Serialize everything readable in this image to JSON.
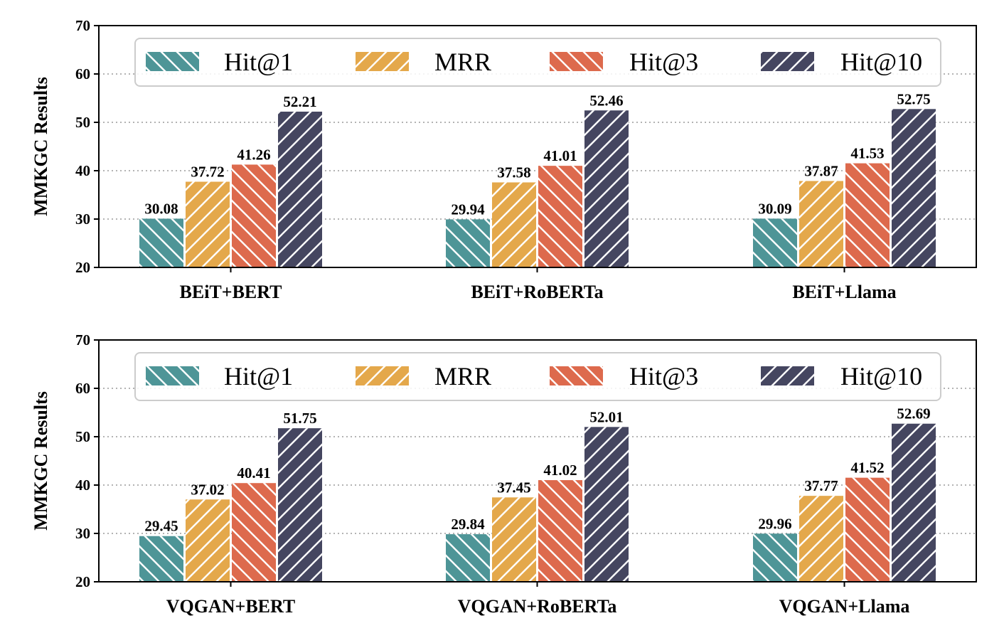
{
  "chart_data": [
    {
      "type": "bar",
      "ylabel": "MMKGC Results",
      "xlabel": "",
      "ylim": [
        20,
        70
      ],
      "yticks": [
        20,
        30,
        40,
        50,
        60,
        70
      ],
      "grid": "y-dotted",
      "legend_position": "top",
      "categories": [
        "BEiT+BERT",
        "BEiT+RoBERTa",
        "BEiT+Llama"
      ],
      "series": [
        {
          "name": "Hit@1",
          "color": "#4e9597",
          "values": [
            30.08,
            29.94,
            30.09
          ]
        },
        {
          "name": "MRR",
          "color": "#e4a84b",
          "values": [
            37.72,
            37.58,
            37.87
          ]
        },
        {
          "name": "Hit@3",
          "color": "#dd6a4d",
          "values": [
            41.26,
            41.01,
            41.53
          ]
        },
        {
          "name": "Hit@10",
          "color": "#454660",
          "values": [
            52.21,
            52.46,
            52.75
          ]
        }
      ],
      "data_labels": [
        [
          "30.08",
          "29.94",
          "30.09"
        ],
        [
          "37.72",
          "37.58",
          "37.87"
        ],
        [
          "41.26",
          "41.01",
          "41.53"
        ],
        [
          "52.21",
          "52.46",
          "52.75"
        ]
      ]
    },
    {
      "type": "bar",
      "ylabel": "MMKGC Results",
      "xlabel": "",
      "ylim": [
        20,
        70
      ],
      "yticks": [
        20,
        30,
        40,
        50,
        60,
        70
      ],
      "grid": "y-dotted",
      "legend_position": "top",
      "categories": [
        "VQGAN+BERT",
        "VQGAN+RoBERTa",
        "VQGAN+Llama"
      ],
      "series": [
        {
          "name": "Hit@1",
          "color": "#4e9597",
          "values": [
            29.45,
            29.84,
            29.96
          ]
        },
        {
          "name": "MRR",
          "color": "#e4a84b",
          "values": [
            37.02,
            37.45,
            37.77
          ]
        },
        {
          "name": "Hit@3",
          "color": "#dd6a4d",
          "values": [
            40.41,
            41.02,
            41.52
          ]
        },
        {
          "name": "Hit@10",
          "color": "#454660",
          "values": [
            51.75,
            52.01,
            52.69
          ]
        }
      ],
      "data_labels": [
        [
          "29.45",
          "29.84",
          "29.96"
        ],
        [
          "37.02",
          "37.45",
          "37.77"
        ],
        [
          "40.41",
          "41.02",
          "41.52"
        ],
        [
          "51.75",
          "52.01",
          "52.69"
        ]
      ]
    }
  ]
}
